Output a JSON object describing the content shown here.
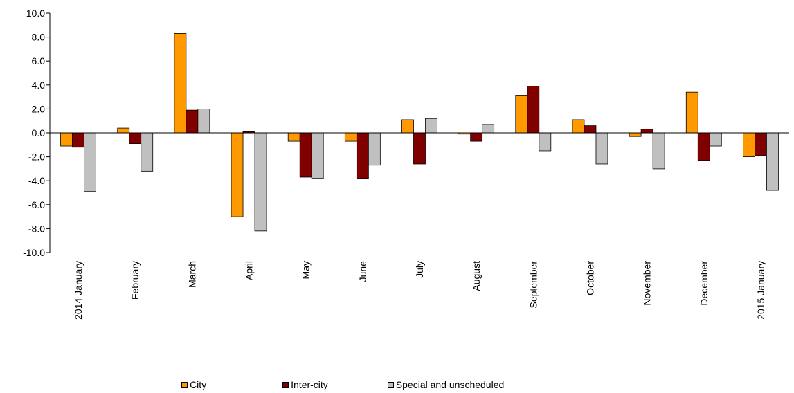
{
  "chart_data": {
    "type": "bar",
    "categories": [
      "2014 January",
      "February",
      "March",
      "April",
      "May",
      "June",
      "July",
      "August",
      "September",
      "October",
      "November",
      "December",
      "2015 January"
    ],
    "series": [
      {
        "name": "City",
        "color": "#FF9900",
        "values": [
          -1.1,
          0.4,
          8.3,
          -7.0,
          -0.7,
          -0.7,
          1.1,
          -0.1,
          3.1,
          1.1,
          -0.3,
          3.4,
          -2.0
        ]
      },
      {
        "name": "Inter-city",
        "color": "#800000",
        "values": [
          -1.2,
          -0.9,
          1.9,
          0.1,
          -3.7,
          -3.8,
          -2.6,
          -0.7,
          3.9,
          0.6,
          0.3,
          -2.3,
          -1.9
        ]
      },
      {
        "name": "Special and unscheduled",
        "color": "#C0C0C0",
        "values": [
          -4.9,
          -3.2,
          2.0,
          -8.2,
          -3.8,
          -2.7,
          1.2,
          0.7,
          -1.5,
          -2.6,
          -3.0,
          -1.1,
          -4.8
        ]
      }
    ],
    "yticks": [
      "10.0",
      "8.0",
      "6.0",
      "4.0",
      "2.0",
      "0.0",
      "-2.0",
      "-4.0",
      "-6.0",
      "-8.0",
      "-10.0"
    ],
    "ylim": [
      -10,
      10
    ],
    "title": "",
    "xlabel": "",
    "ylabel": "",
    "legend_position": "bottom",
    "grid": false
  }
}
